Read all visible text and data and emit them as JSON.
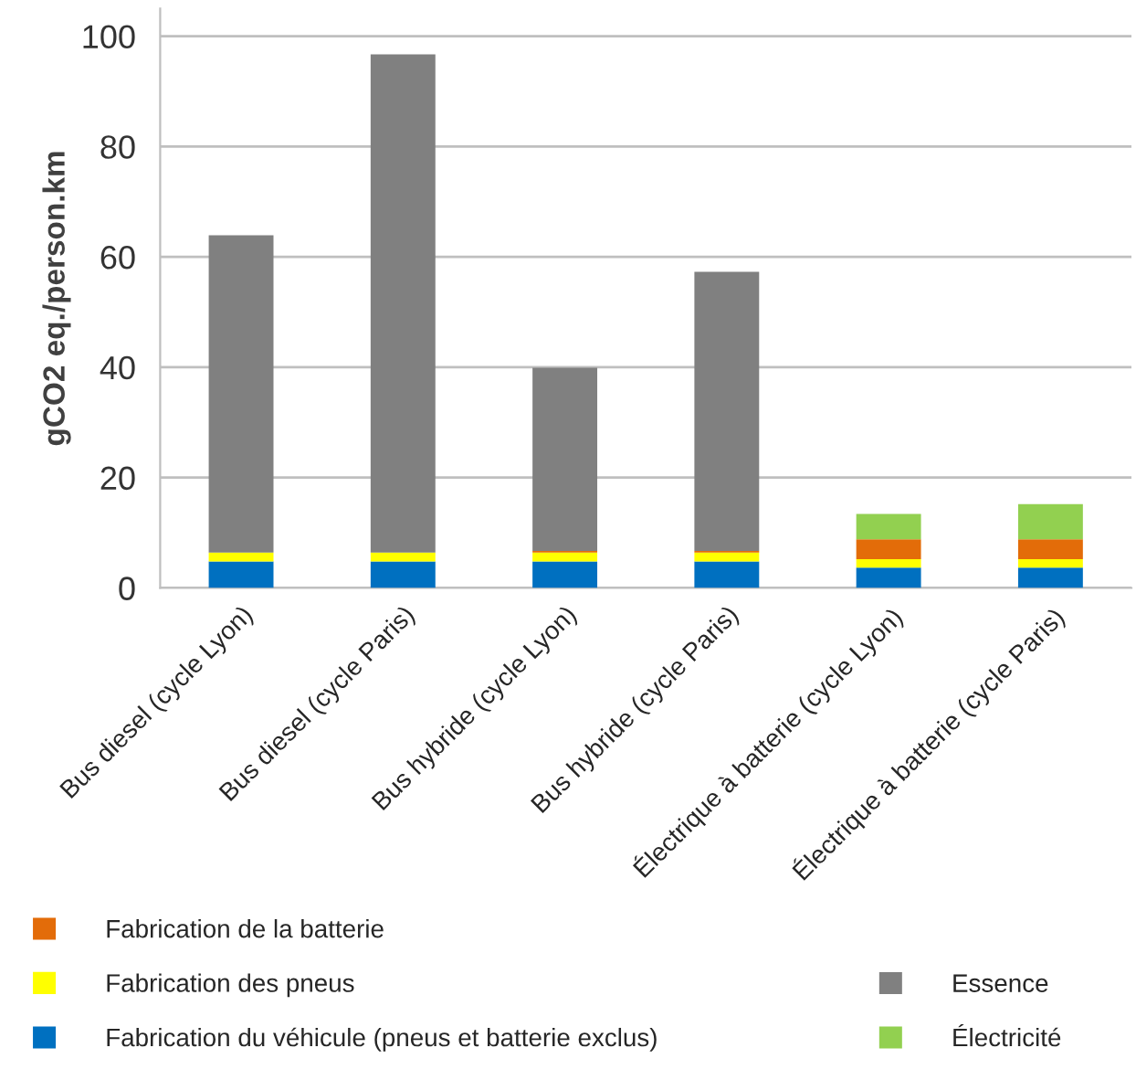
{
  "chart_data": {
    "type": "bar",
    "stacked": true,
    "ylabel": "gCO2 eq./person.km",
    "categories": [
      "Bus diesel (cycle Lyon)",
      "Bus diesel (cycle Paris)",
      "Bus hybride (cycle Lyon)",
      "Bus hybride (cycle Paris)",
      "Électrique à batterie (cycle Lyon)",
      "Électrique à batterie (cycle Paris)"
    ],
    "series": [
      {
        "name": "Fabrication du véhicule (pneus et batterie exclus)",
        "color": "#0070c0",
        "values": [
          4.8,
          4.8,
          4.8,
          4.8,
          3.7,
          3.7
        ]
      },
      {
        "name": "Fabrication des pneus",
        "color": "#ffff00",
        "values": [
          1.6,
          1.6,
          1.6,
          1.6,
          1.5,
          1.5
        ]
      },
      {
        "name": "Fabrication de la batterie",
        "color": "#e36c09",
        "values": [
          0,
          0,
          0.3,
          0.3,
          3.6,
          3.6
        ]
      },
      {
        "name": "Électricité",
        "color": "#92d050",
        "values": [
          0,
          0,
          0,
          0,
          4.6,
          6.4
        ]
      },
      {
        "name": "Essence",
        "color": "#808080",
        "values": [
          57.5,
          90.3,
          33.2,
          50.6,
          0,
          0
        ]
      }
    ],
    "ylim": [
      0,
      105
    ],
    "yticks": [
      0,
      20,
      40,
      60,
      80,
      100
    ],
    "grid": "y",
    "legend": "bottom"
  }
}
